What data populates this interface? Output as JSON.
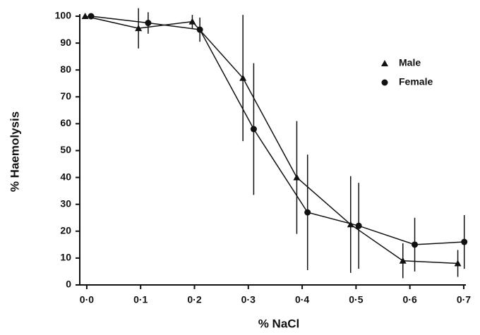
{
  "chart_data": {
    "type": "line",
    "xlabel": "% NaCl",
    "ylabel": "% Haemolysis",
    "xlim": [
      -0.013,
      0.704
    ],
    "ylim": [
      0,
      100
    ],
    "xticks": [
      {
        "value": 0.0,
        "label": "0·0"
      },
      {
        "value": 0.1,
        "label": "0·1"
      },
      {
        "value": 0.2,
        "label": "0·2"
      },
      {
        "value": 0.3,
        "label": "0·3"
      },
      {
        "value": 0.4,
        "label": "0·4"
      },
      {
        "value": 0.5,
        "label": "0·5"
      },
      {
        "value": 0.6,
        "label": "0·6"
      },
      {
        "value": 0.7,
        "label": "0·7"
      }
    ],
    "yticks": [
      0,
      10,
      20,
      30,
      40,
      50,
      60,
      70,
      80,
      90,
      100
    ],
    "legend": "upper right",
    "series": [
      {
        "name": "Male",
        "marker": "triangle",
        "color": "#111111",
        "x": [
          -0.003,
          0.096,
          0.196,
          0.29,
          0.39,
          0.49,
          0.587,
          0.689
        ],
        "values": [
          100,
          95.5,
          98,
          77,
          40,
          22.5,
          9,
          8
        ],
        "errors": [
          null,
          7.5,
          2.5,
          23.5,
          21,
          18,
          6.5,
          5
        ]
      },
      {
        "name": "Female",
        "marker": "circle",
        "color": "#111111",
        "x": [
          0.008,
          0.114,
          0.21,
          0.31,
          0.41,
          0.505,
          0.609,
          0.701
        ],
        "values": [
          100,
          97.5,
          95,
          58,
          27,
          22,
          15,
          16
        ],
        "errors": [
          null,
          4,
          4.5,
          24.5,
          21.5,
          16,
          10,
          10
        ]
      }
    ]
  }
}
